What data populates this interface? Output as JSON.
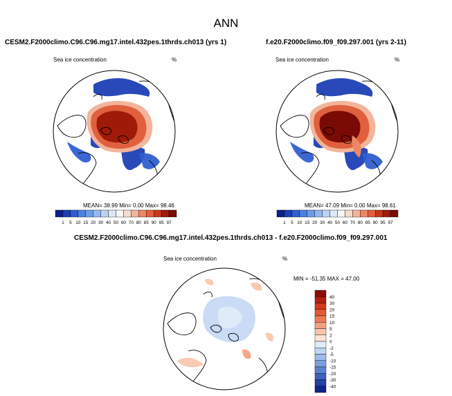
{
  "page": {
    "title": "ANN"
  },
  "panels": {
    "test": {
      "title": "CESM2.F2000climo.C96.C96.mg17.intel.432pes.1thrds.ch013 (yrs 1)",
      "variable": "Sea ice concentration",
      "units": "%",
      "stats": "MEAN=  38.99  Min=   0.00  Max=  98.46"
    },
    "reference": {
      "title": "f.e20.F2000climo.f09_f09.297.001 (yrs 2-11)",
      "variable": "Sea ice concentration",
      "units": "%",
      "stats": "MEAN=  47.09  Min=   0.00  Max=  98.61"
    },
    "difference": {
      "title": "CESM2.F2000climo.C96.C96.mg17.intel.432pes.1thrds.ch013 - f.e20.F2000climo.f09_f09.297.001",
      "variable": "Sea ice concentration",
      "units": "%",
      "stats": "MIN = -51.35  MAX =  47.00"
    }
  },
  "chart_data": [
    {
      "type": "heatmap",
      "projection": "north-polar-stereographic",
      "title": "CESM2.F2000climo.C96.C96.mg17.intel.432pes.1thrds.ch013 (yrs 1)",
      "variable": "Sea ice concentration",
      "units": "%",
      "mean": 38.99,
      "min": 0.0,
      "max": 98.46,
      "levels": [
        1,
        5,
        10,
        15,
        20,
        30,
        40,
        50,
        60,
        70,
        80,
        85,
        90,
        95,
        97
      ],
      "colors": [
        "#0b1f8c",
        "#1d3fb5",
        "#2f5fd0",
        "#4a80e0",
        "#6b9ce8",
        "#93b8f0",
        "#bcd3f6",
        "#dfe8f7",
        "#f7f7f7",
        "#f5dccc",
        "#f2b59b",
        "#ec8766",
        "#e0603d",
        "#c8361c",
        "#a01a0a",
        "#7a0a04"
      ]
    },
    {
      "type": "heatmap",
      "projection": "north-polar-stereographic",
      "title": "f.e20.F2000climo.f09_f09.297.001 (yrs 2-11)",
      "variable": "Sea ice concentration",
      "units": "%",
      "mean": 47.09,
      "min": 0.0,
      "max": 98.61,
      "levels": [
        1,
        5,
        10,
        15,
        20,
        30,
        40,
        50,
        60,
        70,
        80,
        85,
        90,
        95,
        97
      ],
      "colors": [
        "#0b1f8c",
        "#1d3fb5",
        "#2f5fd0",
        "#4a80e0",
        "#6b9ce8",
        "#93b8f0",
        "#bcd3f6",
        "#dfe8f7",
        "#f7f7f7",
        "#f5dccc",
        "#f2b59b",
        "#ec8766",
        "#e0603d",
        "#c8361c",
        "#a01a0a",
        "#7a0a04"
      ]
    },
    {
      "type": "heatmap",
      "projection": "north-polar-stereographic",
      "title": "CESM2.F2000climo.C96.C96.mg17.intel.432pes.1thrds.ch013 - f.e20.F2000climo.f09_f09.297.001",
      "variable": "Sea ice concentration",
      "units": "%",
      "min": -51.35,
      "max": 47.0,
      "levels": [
        40,
        30,
        20,
        15,
        10,
        5,
        2,
        0,
        -2,
        -5,
        -10,
        -15,
        -20,
        -30,
        -40
      ],
      "colors": [
        "#8a0c06",
        "#b31f10",
        "#d23a1c",
        "#e25a34",
        "#ee7b54",
        "#f4a07e",
        "#f8c4aa",
        "#fce4d6",
        "#e1ecf9",
        "#c0d5f3",
        "#9dbbeb",
        "#7a9fe0",
        "#5a82d2",
        "#3b62c0",
        "#2242a6",
        "#0d268a"
      ]
    }
  ]
}
